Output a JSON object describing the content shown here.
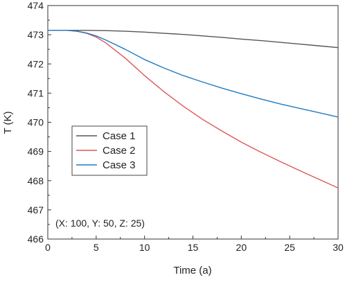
{
  "chart_data": {
    "type": "line",
    "title": "",
    "xlabel": "Time (a)",
    "ylabel": "T (K)",
    "xlim": [
      0,
      30
    ],
    "ylim": [
      466,
      474
    ],
    "x_ticks": [
      "0",
      "5",
      "10",
      "15",
      "20",
      "25",
      "30"
    ],
    "y_ticks": [
      "466",
      "467",
      "468",
      "469",
      "470",
      "471",
      "472",
      "473",
      "474"
    ],
    "grid": false,
    "legend_position": "left-middle",
    "annotation": "(X: 100, Y: 50, Z: 25)",
    "series": [
      {
        "name": "Case 1",
        "color": "#555555",
        "x": [
          0,
          2,
          4,
          6,
          8,
          10,
          12,
          14,
          16,
          18,
          20,
          22,
          24,
          26,
          28,
          30
        ],
        "y": [
          473.15,
          473.15,
          473.15,
          473.14,
          473.12,
          473.09,
          473.05,
          473.01,
          472.96,
          472.91,
          472.85,
          472.8,
          472.74,
          472.68,
          472.62,
          472.56
        ]
      },
      {
        "name": "Case 2",
        "color": "#e05558",
        "x": [
          0,
          2,
          3,
          4,
          5,
          6,
          8,
          10,
          12,
          14,
          16,
          18,
          20,
          22,
          24,
          26,
          28,
          30
        ],
        "y": [
          473.15,
          473.15,
          473.12,
          473.05,
          472.92,
          472.72,
          472.2,
          471.6,
          471.05,
          470.55,
          470.1,
          469.7,
          469.32,
          468.98,
          468.66,
          468.35,
          468.05,
          467.75
        ]
      },
      {
        "name": "Case 3",
        "color": "#1f7bc0",
        "x": [
          0,
          2,
          3,
          4,
          5,
          6,
          8,
          10,
          12,
          14,
          16,
          18,
          20,
          22,
          24,
          26,
          28,
          30
        ],
        "y": [
          473.15,
          473.15,
          473.12,
          473.06,
          472.96,
          472.82,
          472.5,
          472.15,
          471.86,
          471.6,
          471.38,
          471.17,
          470.98,
          470.8,
          470.63,
          470.48,
          470.33,
          470.18
        ]
      }
    ]
  }
}
